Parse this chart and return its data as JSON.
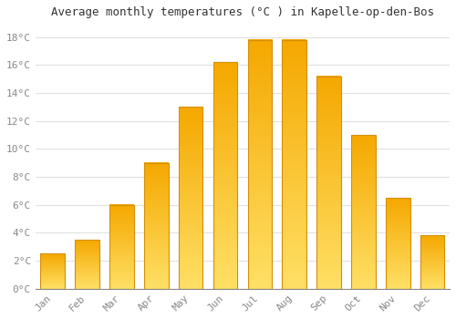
{
  "title": "Average monthly temperatures (°C ) in Kapelle-op-den-Bos",
  "months": [
    "Jan",
    "Feb",
    "Mar",
    "Apr",
    "May",
    "Jun",
    "Jul",
    "Aug",
    "Sep",
    "Oct",
    "Nov",
    "Dec"
  ],
  "temperatures": [
    2.5,
    3.5,
    6.0,
    9.0,
    13.0,
    16.2,
    17.8,
    17.8,
    15.2,
    11.0,
    6.5,
    3.8
  ],
  "bar_color_top": "#F5A800",
  "bar_color_bottom": "#FFE066",
  "bar_border_color": "#D4900A",
  "ylim": [
    0,
    19
  ],
  "yticks": [
    0,
    2,
    4,
    6,
    8,
    10,
    12,
    14,
    16,
    18
  ],
  "ytick_labels": [
    "0°C",
    "2°C",
    "4°C",
    "6°C",
    "8°C",
    "10°C",
    "12°C",
    "14°C",
    "16°C",
    "18°C"
  ],
  "background_color": "#FFFFFF",
  "grid_color": "#E0E0E0",
  "title_fontsize": 9,
  "tick_fontsize": 8,
  "font_family": "monospace",
  "bar_width": 0.7,
  "figsize": [
    5.0,
    3.5
  ],
  "dpi": 100
}
